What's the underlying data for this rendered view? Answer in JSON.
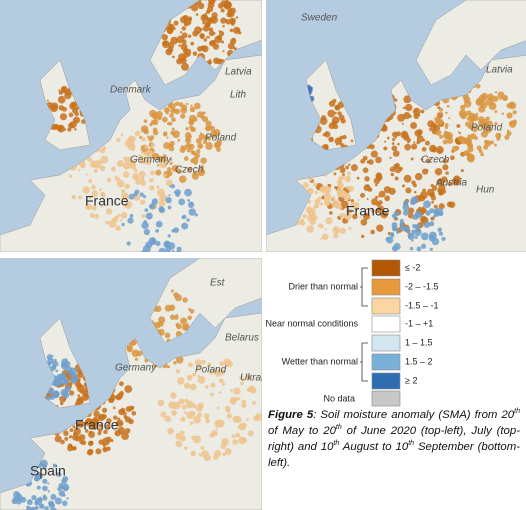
{
  "maps": [
    {
      "labels": [
        "Denmark",
        "Latvia",
        "Germany",
        "Poland",
        "France",
        "Czech",
        "Lith"
      ]
    },
    {
      "labels": [
        "Sweden",
        "Latvia",
        "Poland",
        "France",
        "Austria",
        "Hun",
        "Czech"
      ]
    },
    {
      "labels": [
        "Germany",
        "France",
        "Spain",
        "Poland",
        "Ukrai",
        "Belarus",
        "Est"
      ]
    }
  ],
  "legend": {
    "groups": [
      "Drier than normal",
      "Near normal conditions",
      "Wetter than normal",
      "No data"
    ],
    "classes": [
      "≤ -2",
      "-2 – -1.5",
      "-1.5 – -1",
      "-1 – +1",
      "1 – 1.5",
      "1.5 – 2",
      "≥ 2"
    ]
  },
  "caption": [
    "Figure 5",
    ": Soil moisture anomaly (SMA) from 20",
    "th",
    " of May to 20",
    "th",
    " of June 2020 (top-left), July (top-right) and 10",
    "th",
    " August to 10",
    "th",
    " September (bottom-left)."
  ]
}
